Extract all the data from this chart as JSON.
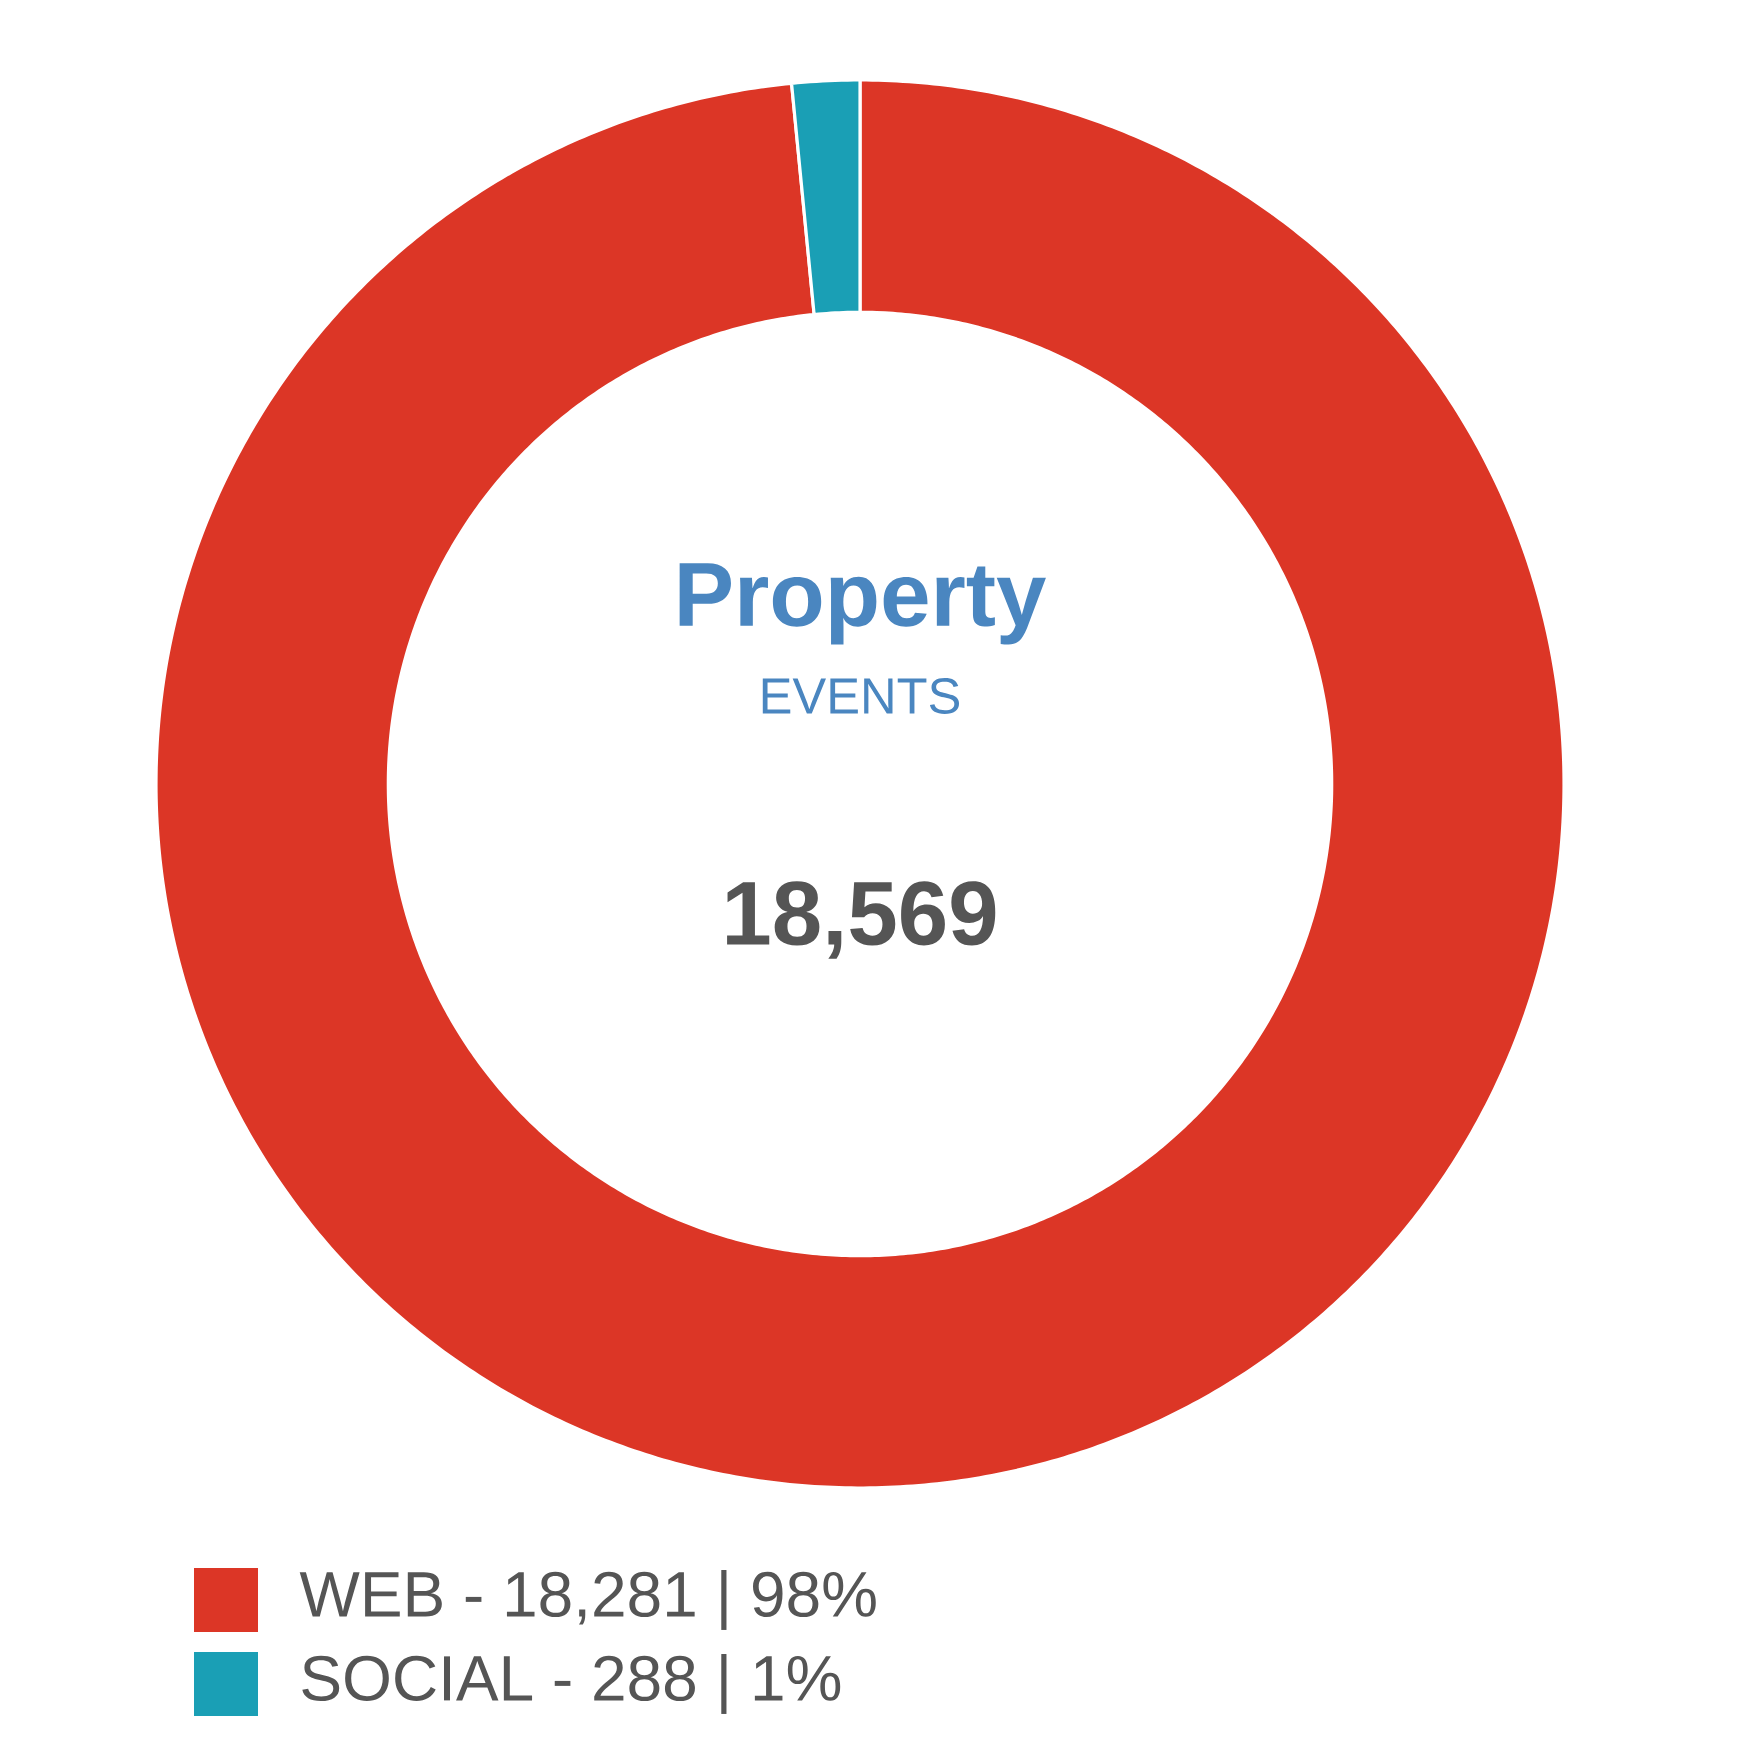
{
  "chart_data": {
    "type": "donut",
    "title": "Property",
    "subtitle": "EVENTS",
    "annotations": [
      "18,569"
    ],
    "categories": [
      "WEB - 18,281 | 98%",
      "SOCIAL - 288 | 1%"
    ],
    "values": [
      98.45,
      1.55
    ],
    "colors": [
      "#dc3626",
      "#1a9fb5"
    ],
    "legend": "bottom left"
  }
}
